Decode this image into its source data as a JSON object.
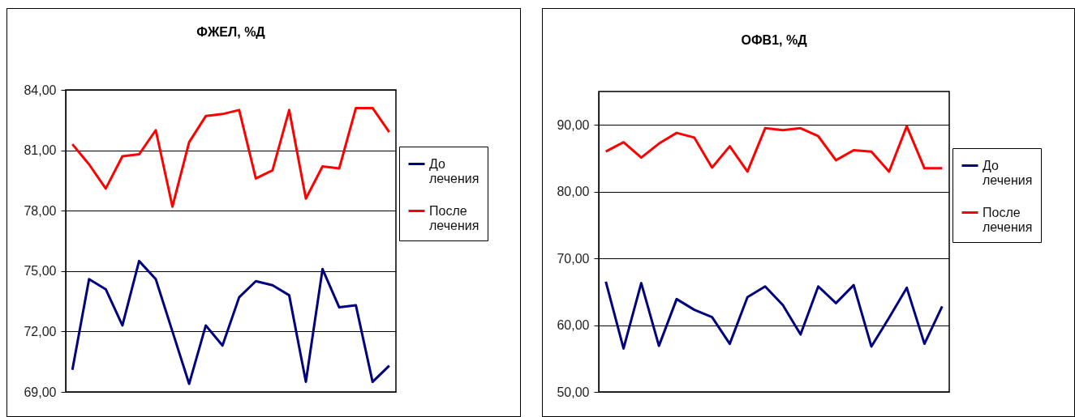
{
  "chart_data": [
    {
      "type": "line",
      "title": "ФЖЕЛ, %Д",
      "categories": [
        null,
        null,
        null,
        null,
        null,
        null,
        null,
        null,
        null,
        null,
        null,
        null,
        null,
        null,
        null,
        null,
        null,
        null,
        null,
        null
      ],
      "series": [
        {
          "name": "До лечения",
          "color": "#000080",
          "values": [
            70.1,
            74.6,
            74.1,
            72.3,
            75.5,
            74.6,
            72.0,
            69.4,
            72.3,
            71.3,
            73.7,
            74.5,
            74.3,
            73.8,
            69.5,
            75.1,
            73.2,
            73.3,
            69.5,
            70.3
          ]
        },
        {
          "name": "После лечения",
          "color": "#ff0000",
          "values": [
            81.3,
            80.3,
            79.1,
            80.7,
            80.8,
            82.0,
            78.2,
            81.4,
            82.7,
            82.8,
            83.0,
            79.6,
            80.0,
            83.0,
            78.6,
            80.2,
            80.1,
            83.1,
            83.1,
            81.9
          ]
        }
      ],
      "ylim": [
        69,
        84
      ],
      "yticks": [
        {
          "value": 69,
          "label": "69,00"
        },
        {
          "value": 72,
          "label": "72,00"
        },
        {
          "value": 75,
          "label": "75,00"
        },
        {
          "value": 78,
          "label": "78,00"
        },
        {
          "value": 81,
          "label": "81,00"
        },
        {
          "value": 84,
          "label": "84,00"
        }
      ],
      "grid": "y",
      "legend": "right",
      "marker": "none",
      "line_style": "solid"
    },
    {
      "type": "line",
      "title": "ОФВ1, %Д",
      "categories": [
        null,
        null,
        null,
        null,
        null,
        null,
        null,
        null,
        null,
        null,
        null,
        null,
        null,
        null,
        null,
        null,
        null,
        null,
        null,
        null
      ],
      "series": [
        {
          "name": "До лечения",
          "color": "#000080",
          "values": [
            66.5,
            56.5,
            66.3,
            56.9,
            63.9,
            62.3,
            61.2,
            57.2,
            64.2,
            65.8,
            63.0,
            58.6,
            65.8,
            63.3,
            66.0,
            56.8,
            61.1,
            65.6,
            57.2,
            62.8
          ]
        },
        {
          "name": "После лечения",
          "color": "#ff0000",
          "values": [
            86.0,
            87.4,
            85.1,
            87.2,
            88.8,
            88.1,
            83.6,
            86.8,
            83.0,
            89.5,
            89.2,
            89.5,
            88.3,
            84.7,
            86.2,
            86.0,
            83.0,
            89.8,
            83.5,
            83.5
          ]
        }
      ],
      "ylim": [
        50,
        95
      ],
      "yticks": [
        {
          "value": 50,
          "label": "50,00"
        },
        {
          "value": 60,
          "label": "60,00"
        },
        {
          "value": 70,
          "label": "70,00"
        },
        {
          "value": 80,
          "label": "80,00"
        },
        {
          "value": 90,
          "label": "90,00"
        }
      ],
      "grid": "y",
      "legend": "right",
      "marker": "none",
      "line_style": "solid"
    }
  ]
}
